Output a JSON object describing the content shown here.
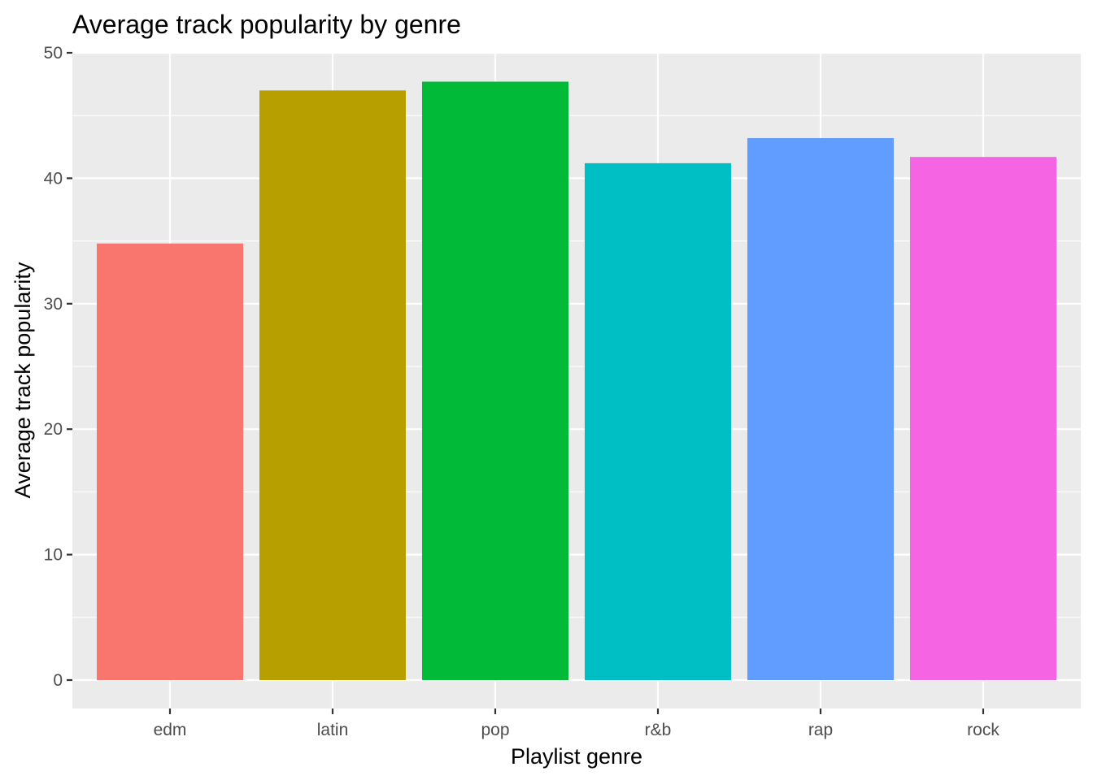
{
  "chart_data": {
    "type": "bar",
    "title": "Average track popularity by genre",
    "xlabel": "Playlist genre",
    "ylabel": "Average track popularity",
    "categories": [
      "edm",
      "latin",
      "pop",
      "r&b",
      "rap",
      "rock"
    ],
    "values": [
      34.8,
      47.0,
      47.7,
      41.2,
      43.2,
      41.7
    ],
    "colors": [
      "#F8766D",
      "#B79F00",
      "#00BA38",
      "#00BFC4",
      "#619CFF",
      "#F564E3"
    ],
    "ylim": [
      0,
      50
    ],
    "yticks": [
      0,
      10,
      20,
      30,
      40,
      50
    ],
    "ytick_labels": [
      "0",
      "10",
      "20",
      "30",
      "40",
      "50"
    ],
    "grid": true,
    "legend": "none",
    "panel_background": "#EBEBEB",
    "grid_color": "#FFFFFF"
  }
}
